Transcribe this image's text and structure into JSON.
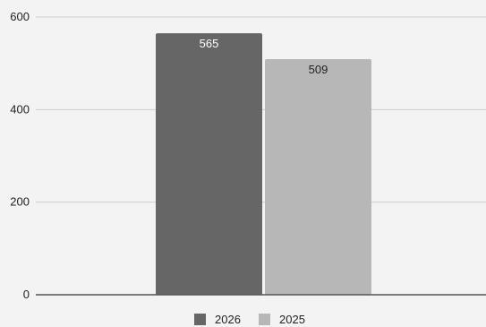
{
  "chart_data": {
    "type": "bar",
    "categories": [
      ""
    ],
    "series": [
      {
        "name": "2026",
        "values": [
          565
        ],
        "color": "#666666",
        "label_color": "#ffffff"
      },
      {
        "name": "2025",
        "values": [
          509
        ],
        "color": "#b7b7b7",
        "label_color": "#222222"
      }
    ],
    "ylim": [
      0,
      600
    ],
    "yticks": [
      "0",
      "200",
      "400",
      "600"
    ],
    "data_labels": [
      "565",
      "509"
    ],
    "grid": true,
    "legend": "bottom",
    "background": "#f3f3f3",
    "gridline_color": "#cccccc",
    "axis_color": "#555555"
  }
}
